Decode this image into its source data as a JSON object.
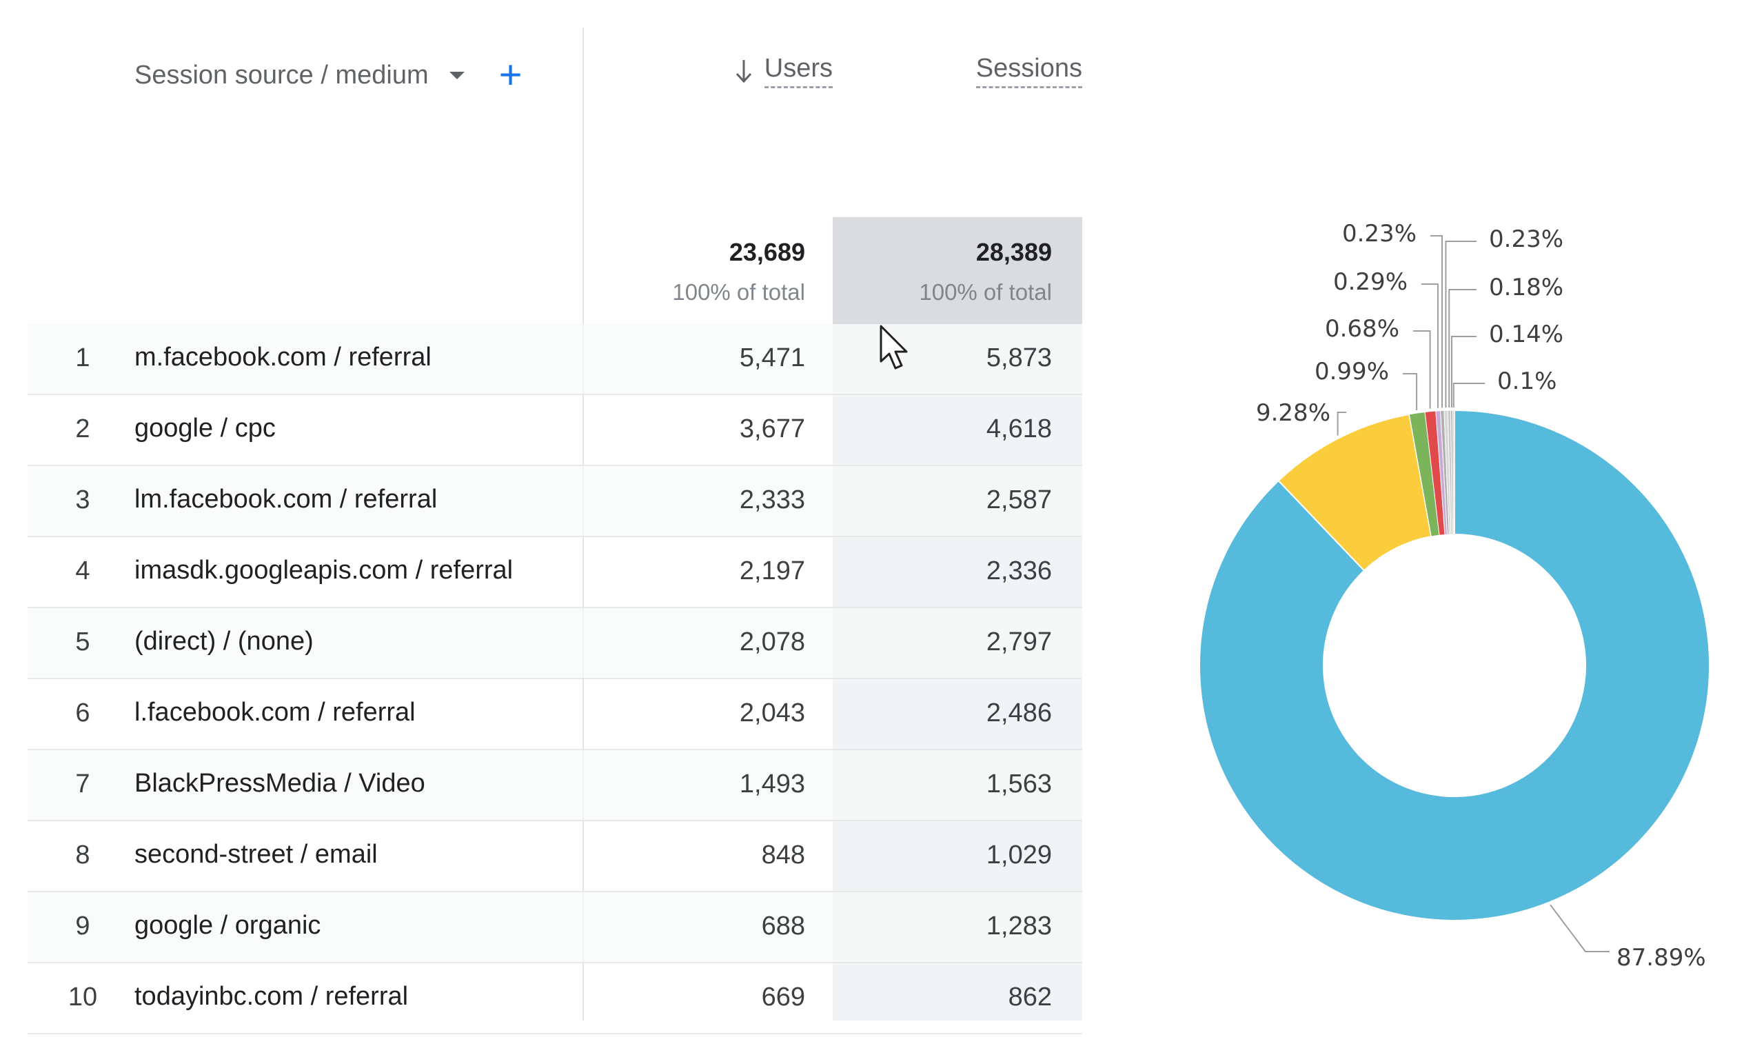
{
  "table": {
    "dimension_label": "Session source / medium",
    "add_label": "+",
    "users_label": "Users",
    "sessions_label": "Sessions",
    "totals": {
      "users": "23,689",
      "users_pct": "100% of total",
      "sessions": "28,389",
      "sessions_pct": "100% of total"
    },
    "rows": [
      {
        "idx": "1",
        "source": "m.facebook.com / referral",
        "users": "5,471",
        "sessions": "5,873"
      },
      {
        "idx": "2",
        "source": "google / cpc",
        "users": "3,677",
        "sessions": "4,618"
      },
      {
        "idx": "3",
        "source": "lm.facebook.com / referral",
        "users": "2,333",
        "sessions": "2,587"
      },
      {
        "idx": "4",
        "source": "imasdk.googleapis.com / referral",
        "users": "2,197",
        "sessions": "2,336"
      },
      {
        "idx": "5",
        "source": "(direct) / (none)",
        "users": "2,078",
        "sessions": "2,797"
      },
      {
        "idx": "6",
        "source": "l.facebook.com / referral",
        "users": "2,043",
        "sessions": "2,486"
      },
      {
        "idx": "7",
        "source": "BlackPressMedia / Video",
        "users": "1,493",
        "sessions": "1,563"
      },
      {
        "idx": "8",
        "source": "second-street / email",
        "users": "848",
        "sessions": "1,029"
      },
      {
        "idx": "9",
        "source": "google / organic",
        "users": "688",
        "sessions": "1,283"
      },
      {
        "idx": "10",
        "source": "todayinbc.com / referral",
        "users": "669",
        "sessions": "862"
      }
    ]
  },
  "colors": {
    "accent": "#1a73e8",
    "sessions_header_bg": "#dadce0"
  },
  "chart_data": {
    "type": "pie",
    "title": "",
    "slices": [
      {
        "label": "87.89%",
        "value": 87.89,
        "color": "#55badb"
      },
      {
        "label": "9.28%",
        "value": 9.28,
        "color": "#fbcd3c"
      },
      {
        "label": "0.99%",
        "value": 0.99,
        "color": "#7cb45b"
      },
      {
        "label": "0.68%",
        "value": 0.68,
        "color": "#e04a4a"
      },
      {
        "label": "0.29%",
        "value": 0.29,
        "color": "#c9a9d8"
      },
      {
        "label": "0.23%",
        "value": 0.23,
        "color": "#b0b0b0"
      },
      {
        "label": "0.23%",
        "value": 0.23,
        "color": "#d8d8d8"
      },
      {
        "label": "0.18%",
        "value": 0.18,
        "color": "#c8c8c8"
      },
      {
        "label": "0.14%",
        "value": 0.14,
        "color": "#bdbdbd"
      },
      {
        "label": "0.1%",
        "value": 0.1,
        "color": "#cfcfcf"
      }
    ],
    "donut": true,
    "legend": "none"
  }
}
